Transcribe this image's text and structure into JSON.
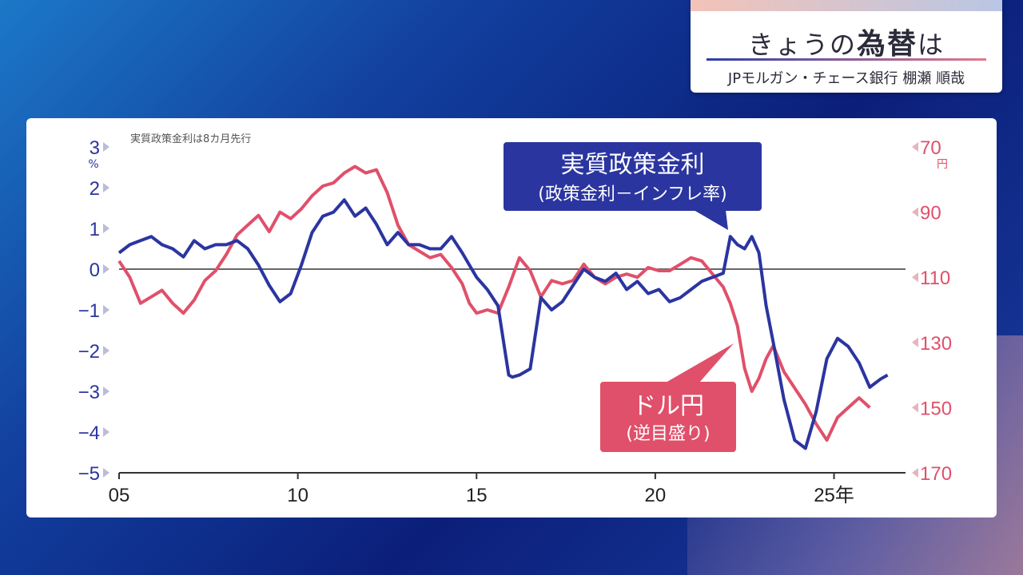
{
  "header": {
    "title_prefix": "きょうの",
    "title_emphasis": "為替",
    "title_suffix": "は",
    "subtitle": "JPモルガン・チェース銀行 棚瀬 順哉"
  },
  "colors": {
    "policy_rate": "#2b35a0",
    "usd_jpy": "#e0506a",
    "zero_line": "#333333"
  },
  "chart_data": {
    "type": "line",
    "note": "実質政策金利は8カ月先行",
    "x_ticks": [
      "05",
      "10",
      "15",
      "20",
      "25年"
    ],
    "x_tick_values": [
      2005,
      2010,
      2015,
      2020,
      2025
    ],
    "xlim": [
      2005,
      2027
    ],
    "left_axis": {
      "unit": "%",
      "ylim": [
        -5,
        3
      ],
      "ticks": [
        "3",
        "2",
        "1",
        "0",
        "−1",
        "−2",
        "−3",
        "−4",
        "−5"
      ],
      "tick_values": [
        3,
        2,
        1,
        0,
        -1,
        -2,
        -3,
        -4,
        -5
      ]
    },
    "right_axis": {
      "unit": "円",
      "inverted": true,
      "ylim": [
        70,
        170
      ],
      "ticks": [
        "70",
        "90",
        "110",
        "130",
        "150",
        "170"
      ],
      "tick_values": [
        70,
        90,
        110,
        130,
        150,
        170
      ]
    },
    "series": [
      {
        "name": "実質政策金利",
        "label_sub": "(政策金利－インフレ率)",
        "axis": "left",
        "x": [
          2005.0,
          2005.3,
          2005.6,
          2005.9,
          2006.2,
          2006.5,
          2006.8,
          2007.1,
          2007.4,
          2007.7,
          2008.0,
          2008.3,
          2008.6,
          2008.9,
          2009.2,
          2009.5,
          2009.8,
          2010.1,
          2010.4,
          2010.7,
          2011.0,
          2011.3,
          2011.6,
          2011.9,
          2012.2,
          2012.5,
          2012.8,
          2013.1,
          2013.4,
          2013.7,
          2014.0,
          2014.3,
          2014.6,
          2014.8,
          2015.0,
          2015.3,
          2015.6,
          2015.9,
          2016.0,
          2016.2,
          2016.5,
          2016.8,
          2017.1,
          2017.4,
          2017.7,
          2018.0,
          2018.3,
          2018.6,
          2018.9,
          2019.2,
          2019.5,
          2019.8,
          2020.1,
          2020.4,
          2020.7,
          2021.0,
          2021.3,
          2021.6,
          2021.9,
          2022.1,
          2022.3,
          2022.5,
          2022.7,
          2022.9,
          2023.1,
          2023.3,
          2023.6,
          2023.9,
          2024.2,
          2024.5,
          2024.8,
          2025.1,
          2025.4,
          2025.7,
          2026.0,
          2026.3,
          2026.5
        ],
        "y": [
          0.4,
          0.6,
          0.7,
          0.8,
          0.6,
          0.5,
          0.3,
          0.7,
          0.5,
          0.6,
          0.6,
          0.7,
          0.5,
          0.1,
          -0.4,
          -0.8,
          -0.6,
          0.1,
          0.9,
          1.3,
          1.4,
          1.7,
          1.3,
          1.5,
          1.1,
          0.6,
          0.9,
          0.6,
          0.6,
          0.5,
          0.5,
          0.8,
          0.4,
          0.1,
          -0.2,
          -0.5,
          -0.9,
          -2.6,
          -2.65,
          -2.6,
          -2.45,
          -0.7,
          -1.0,
          -0.8,
          -0.4,
          0.0,
          -0.2,
          -0.3,
          -0.1,
          -0.5,
          -0.3,
          -0.6,
          -0.5,
          -0.8,
          -0.7,
          -0.5,
          -0.3,
          -0.2,
          -0.1,
          0.8,
          0.6,
          0.5,
          0.8,
          0.4,
          -0.9,
          -1.8,
          -3.2,
          -4.2,
          -4.4,
          -3.5,
          -2.2,
          -1.7,
          -1.9,
          -2.3,
          -2.9,
          -2.7,
          -2.6
        ]
      },
      {
        "name": "ドル円",
        "label_sub": "(逆目盛り)",
        "axis": "right",
        "x": [
          2005.0,
          2005.3,
          2005.6,
          2005.9,
          2006.2,
          2006.5,
          2006.8,
          2007.1,
          2007.4,
          2007.7,
          2008.0,
          2008.3,
          2008.6,
          2008.9,
          2009.2,
          2009.5,
          2009.8,
          2010.1,
          2010.4,
          2010.7,
          2011.0,
          2011.3,
          2011.6,
          2011.9,
          2012.2,
          2012.5,
          2012.8,
          2013.1,
          2013.4,
          2013.7,
          2014.0,
          2014.3,
          2014.6,
          2014.8,
          2015.0,
          2015.3,
          2015.6,
          2015.9,
          2016.2,
          2016.5,
          2016.8,
          2017.1,
          2017.4,
          2017.7,
          2018.0,
          2018.3,
          2018.6,
          2018.9,
          2019.2,
          2019.5,
          2019.8,
          2020.1,
          2020.4,
          2020.7,
          2021.0,
          2021.3,
          2021.6,
          2021.9,
          2022.1,
          2022.3,
          2022.5,
          2022.7,
          2022.9,
          2023.1,
          2023.3,
          2023.6,
          2023.9,
          2024.2,
          2024.5,
          2024.8,
          2025.1,
          2025.4,
          2025.7,
          2026.0
        ],
        "y": [
          105,
          110,
          118,
          116,
          114,
          118,
          121,
          117,
          111,
          108,
          103,
          97,
          94,
          91,
          96,
          90,
          92,
          89,
          85,
          82,
          81,
          78,
          76,
          78,
          77,
          84,
          94,
          100,
          102,
          104,
          103,
          107,
          112,
          118,
          121,
          120,
          121,
          113,
          104,
          108,
          116,
          111,
          112,
          111,
          106,
          110,
          112,
          110,
          109,
          110,
          107,
          108,
          108,
          106,
          104,
          105,
          109,
          113,
          118,
          125,
          138,
          145,
          141,
          135,
          131,
          139,
          144,
          149,
          155,
          160,
          153,
          150,
          147,
          150
        ]
      }
    ]
  }
}
